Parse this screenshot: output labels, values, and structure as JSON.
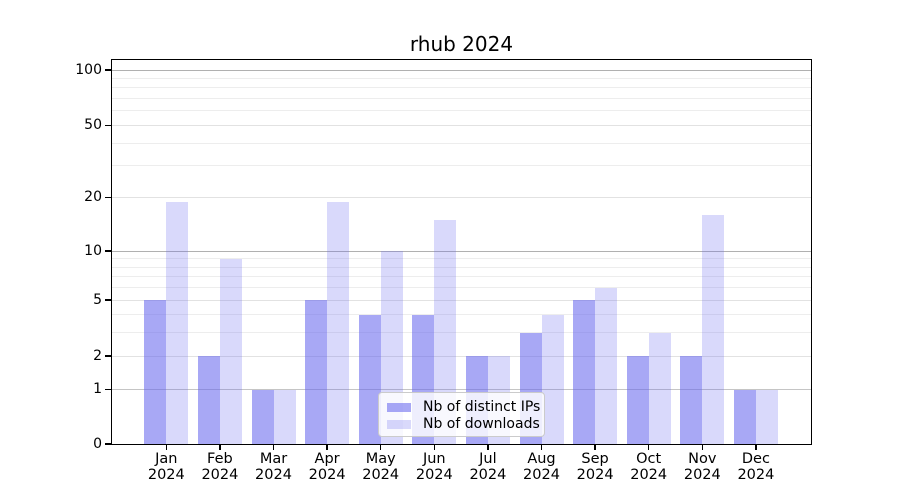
{
  "chart": {
    "title": "rhub 2024"
  },
  "chart_data": {
    "type": "bar",
    "title": "rhub 2024",
    "categories": [
      "Jan 2024",
      "Feb 2024",
      "Mar 2024",
      "Apr 2024",
      "May 2024",
      "Jun 2024",
      "Jul 2024",
      "Aug 2024",
      "Sep 2024",
      "Oct 2024",
      "Nov 2024",
      "Dec 2024"
    ],
    "months": [
      "Jan",
      "Feb",
      "Mar",
      "Apr",
      "May",
      "Jun",
      "Jul",
      "Aug",
      "Sep",
      "Oct",
      "Nov",
      "Dec"
    ],
    "year": "2024",
    "series": [
      {
        "name": "Nb of distinct IPs",
        "color": "rgba(102,102,238,0.57)",
        "values": [
          5,
          2,
          1,
          5,
          4,
          4,
          2,
          3,
          5,
          2,
          2,
          1
        ]
      },
      {
        "name": "Nb of downloads",
        "color": "rgba(102,102,238,0.25)",
        "values": [
          19,
          9,
          1,
          19,
          10,
          15,
          2,
          4,
          6,
          3,
          16,
          1
        ]
      }
    ],
    "y_axis": {
      "scale": "log1p",
      "ticks": [
        0,
        1,
        2,
        5,
        10,
        20,
        50,
        100
      ],
      "range": [
        0,
        115
      ]
    },
    "xlabel": "",
    "ylabel": "",
    "grid": true,
    "legend_position": "inside-bottom-center",
    "colors": {
      "bar_base": "#6666ee",
      "grid_major": "#b0b0b0",
      "grid_minor": "#ededed",
      "axis": "#000000"
    }
  }
}
